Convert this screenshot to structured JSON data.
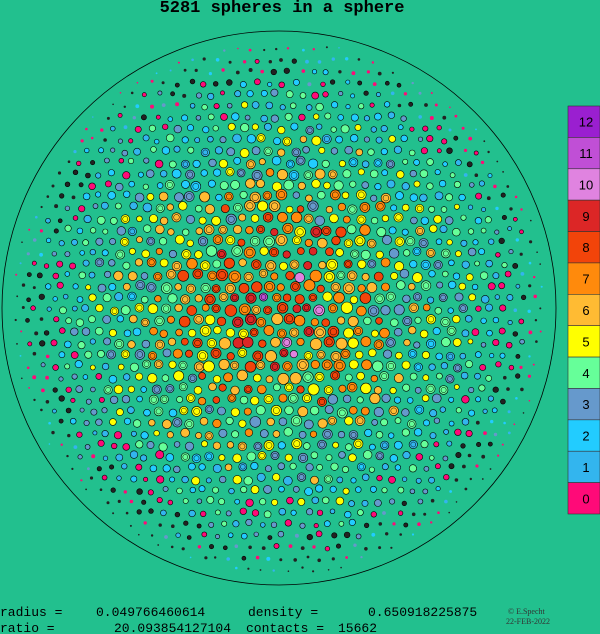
{
  "title": "5281 spheres in a sphere",
  "legend": [
    {
      "label": "12",
      "color": "#9a1fd0"
    },
    {
      "label": "11",
      "color": "#c04fd6"
    },
    {
      "label": "10",
      "color": "#e083e0"
    },
    {
      "label": "9",
      "color": "#dc2626"
    },
    {
      "label": "8",
      "color": "#f2440a"
    },
    {
      "label": "7",
      "color": "#ff8a0c"
    },
    {
      "label": "6",
      "color": "#ffbb33"
    },
    {
      "label": "5",
      "color": "#ffff00"
    },
    {
      "label": "4",
      "color": "#66ff99"
    },
    {
      "label": "3",
      "color": "#6699cc"
    },
    {
      "label": "2",
      "color": "#22ccff"
    },
    {
      "label": "1",
      "color": "#33b5ee"
    },
    {
      "label": "0",
      "color": "#ff0a78"
    }
  ],
  "stats": [
    {
      "label": "radius =",
      "value": "0.049766460614"
    },
    {
      "label": "density  =",
      "value": "0.650918225875"
    },
    {
      "label": "ratio  =",
      "value": "20.093854127104"
    },
    {
      "label": "contacts =",
      "value": "15662"
    }
  ],
  "credit": {
    "author": "© E.Specht",
    "date": "22-FEB-2022"
  }
}
